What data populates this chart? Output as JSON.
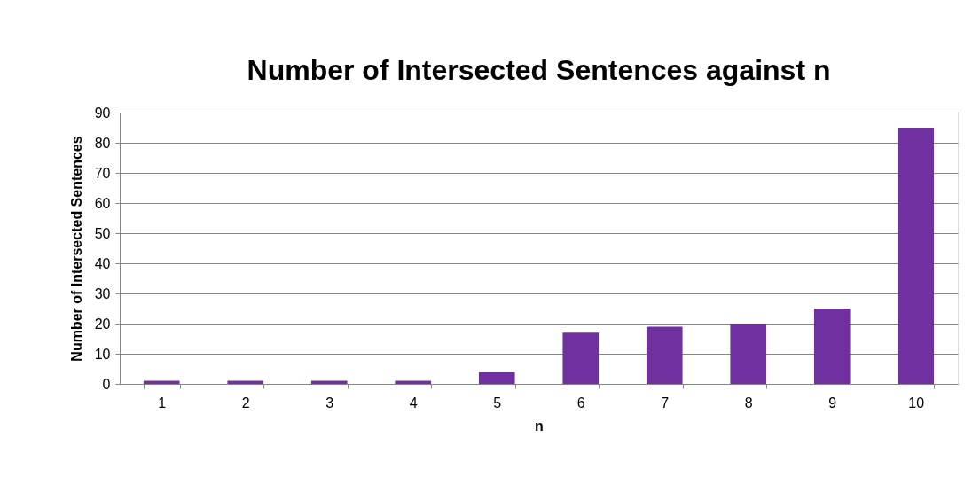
{
  "chart_data": {
    "type": "bar",
    "title": "Number of Intersected Sentences against n",
    "xlabel": "n",
    "ylabel": "Number of Intersected Sentences",
    "categories": [
      "1",
      "2",
      "3",
      "4",
      "5",
      "6",
      "7",
      "8",
      "9",
      "10"
    ],
    "values": [
      1,
      1,
      1,
      1,
      4,
      17,
      19,
      20,
      25,
      85
    ],
    "color": "#7030a0",
    "ylim": [
      0,
      90
    ],
    "yticks": [
      0,
      10,
      20,
      30,
      40,
      50,
      60,
      70,
      80,
      90
    ],
    "grid": "y"
  }
}
